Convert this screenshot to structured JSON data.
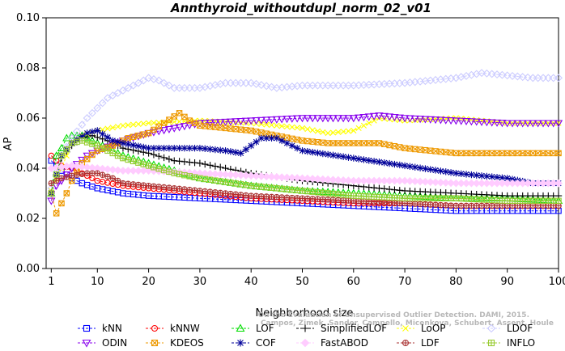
{
  "chart_data": {
    "type": "line",
    "title": "Annthyroid_withoutdupl_norm_02_v01",
    "xlabel": "Neighborhood size",
    "ylabel": "AP",
    "xlim": [
      0,
      100
    ],
    "ylim": [
      0,
      0.1
    ],
    "xticks": [
      1,
      10,
      20,
      30,
      40,
      50,
      60,
      70,
      80,
      90,
      100
    ],
    "yticks": [
      "0.00",
      "0.02",
      "0.04",
      "0.06",
      "0.08",
      "0.10"
    ],
    "watermark": [
      "On the Evaluation of Unsupervised Outlier Detection. DAMI, 2015.",
      "Campos, Zimek, Sander, Campello, Micenkova, Schubert, Assent, Houle"
    ],
    "legend_position": "bottom",
    "series": [
      {
        "name": "kNN",
        "color": "#0000ff",
        "marker": "square",
        "points": [
          [
            1,
            0.043
          ],
          [
            3,
            0.039
          ],
          [
            5,
            0.036
          ],
          [
            7,
            0.034
          ],
          [
            10,
            0.032
          ],
          [
            15,
            0.03
          ],
          [
            20,
            0.029
          ],
          [
            30,
            0.028
          ],
          [
            40,
            0.027
          ],
          [
            50,
            0.026
          ],
          [
            60,
            0.025
          ],
          [
            70,
            0.024
          ],
          [
            80,
            0.023
          ],
          [
            90,
            0.023
          ],
          [
            100,
            0.023
          ]
        ]
      },
      {
        "name": "kNNW",
        "color": "#ff0000",
        "marker": "circle",
        "points": [
          [
            1,
            0.045
          ],
          [
            2,
            0.043
          ],
          [
            3,
            0.041
          ],
          [
            5,
            0.04
          ],
          [
            7,
            0.038
          ],
          [
            10,
            0.035
          ],
          [
            15,
            0.033
          ],
          [
            20,
            0.032
          ],
          [
            30,
            0.03
          ],
          [
            40,
            0.028
          ],
          [
            50,
            0.027
          ],
          [
            60,
            0.026
          ],
          [
            70,
            0.026
          ],
          [
            80,
            0.025
          ],
          [
            90,
            0.025
          ],
          [
            100,
            0.025
          ]
        ]
      },
      {
        "name": "LOF",
        "color": "#00dd00",
        "marker": "triangle",
        "points": [
          [
            1,
            0.03
          ],
          [
            2,
            0.045
          ],
          [
            3,
            0.048
          ],
          [
            4,
            0.052
          ],
          [
            5,
            0.053
          ],
          [
            7,
            0.053
          ],
          [
            10,
            0.05
          ],
          [
            15,
            0.045
          ],
          [
            20,
            0.042
          ],
          [
            25,
            0.039
          ],
          [
            30,
            0.036
          ],
          [
            40,
            0.033
          ],
          [
            50,
            0.031
          ],
          [
            60,
            0.03
          ],
          [
            70,
            0.029
          ],
          [
            80,
            0.028
          ],
          [
            90,
            0.028
          ],
          [
            100,
            0.027
          ]
        ]
      },
      {
        "name": "SimplifiedLOF",
        "color": "#000000",
        "marker": "plus",
        "points": [
          [
            1,
            0.03
          ],
          [
            3,
            0.044
          ],
          [
            5,
            0.049
          ],
          [
            7,
            0.052
          ],
          [
            9,
            0.053
          ],
          [
            12,
            0.051
          ],
          [
            15,
            0.048
          ],
          [
            20,
            0.046
          ],
          [
            25,
            0.043
          ],
          [
            30,
            0.042
          ],
          [
            40,
            0.038
          ],
          [
            50,
            0.035
          ],
          [
            60,
            0.033
          ],
          [
            70,
            0.031
          ],
          [
            80,
            0.03
          ],
          [
            90,
            0.029
          ],
          [
            100,
            0.029
          ]
        ]
      },
      {
        "name": "LoOP",
        "color": "#ffff00",
        "marker": "x",
        "points": [
          [
            1,
            0.031
          ],
          [
            3,
            0.04
          ],
          [
            5,
            0.05
          ],
          [
            7,
            0.053
          ],
          [
            10,
            0.055
          ],
          [
            15,
            0.057
          ],
          [
            20,
            0.058
          ],
          [
            30,
            0.059
          ],
          [
            40,
            0.058
          ],
          [
            50,
            0.056
          ],
          [
            55,
            0.054
          ],
          [
            60,
            0.055
          ],
          [
            65,
            0.06
          ],
          [
            70,
            0.059
          ],
          [
            80,
            0.06
          ],
          [
            90,
            0.058
          ],
          [
            100,
            0.058
          ]
        ]
      },
      {
        "name": "LDOF",
        "color": "#ccccff",
        "marker": "diamond",
        "points": [
          [
            1,
            0.032
          ],
          [
            3,
            0.045
          ],
          [
            5,
            0.052
          ],
          [
            8,
            0.06
          ],
          [
            10,
            0.064
          ],
          [
            12,
            0.068
          ],
          [
            15,
            0.071
          ],
          [
            18,
            0.074
          ],
          [
            20,
            0.076
          ],
          [
            22,
            0.075
          ],
          [
            25,
            0.072
          ],
          [
            30,
            0.072
          ],
          [
            35,
            0.074
          ],
          [
            40,
            0.074
          ],
          [
            45,
            0.072
          ],
          [
            50,
            0.073
          ],
          [
            60,
            0.073
          ],
          [
            70,
            0.074
          ],
          [
            80,
            0.076
          ],
          [
            85,
            0.078
          ],
          [
            90,
            0.077
          ],
          [
            95,
            0.076
          ],
          [
            100,
            0.076
          ]
        ]
      },
      {
        "name": "ODIN",
        "color": "#8800ee",
        "marker": "triangle-down",
        "points": [
          [
            1,
            0.027
          ],
          [
            2,
            0.033
          ],
          [
            3,
            0.035
          ],
          [
            5,
            0.04
          ],
          [
            8,
            0.045
          ],
          [
            10,
            0.047
          ],
          [
            15,
            0.051
          ],
          [
            20,
            0.054
          ],
          [
            25,
            0.056
          ],
          [
            30,
            0.058
          ],
          [
            40,
            0.059
          ],
          [
            50,
            0.06
          ],
          [
            60,
            0.06
          ],
          [
            65,
            0.061
          ],
          [
            70,
            0.06
          ],
          [
            80,
            0.059
          ],
          [
            90,
            0.058
          ],
          [
            100,
            0.058
          ]
        ]
      },
      {
        "name": "KDEOS",
        "color": "#ee9900",
        "marker": "square-x",
        "points": [
          [
            1,
            0.03
          ],
          [
            2,
            0.022
          ],
          [
            3,
            0.026
          ],
          [
            4,
            0.03
          ],
          [
            5,
            0.035
          ],
          [
            7,
            0.042
          ],
          [
            10,
            0.047
          ],
          [
            13,
            0.049
          ],
          [
            16,
            0.052
          ],
          [
            20,
            0.054
          ],
          [
            23,
            0.058
          ],
          [
            26,
            0.062
          ],
          [
            28,
            0.059
          ],
          [
            30,
            0.057
          ],
          [
            35,
            0.056
          ],
          [
            40,
            0.055
          ],
          [
            45,
            0.053
          ],
          [
            50,
            0.051
          ],
          [
            55,
            0.05
          ],
          [
            60,
            0.05
          ],
          [
            65,
            0.05
          ],
          [
            70,
            0.048
          ],
          [
            75,
            0.047
          ],
          [
            80,
            0.046
          ],
          [
            90,
            0.046
          ],
          [
            100,
            0.046
          ]
        ]
      },
      {
        "name": "COF",
        "color": "#000099",
        "marker": "star",
        "points": [
          [
            1,
            0.03
          ],
          [
            3,
            0.045
          ],
          [
            5,
            0.05
          ],
          [
            8,
            0.054
          ],
          [
            10,
            0.055
          ],
          [
            13,
            0.051
          ],
          [
            15,
            0.05
          ],
          [
            20,
            0.048
          ],
          [
            25,
            0.048
          ],
          [
            30,
            0.048
          ],
          [
            35,
            0.047
          ],
          [
            38,
            0.046
          ],
          [
            42,
            0.052
          ],
          [
            45,
            0.052
          ],
          [
            50,
            0.047
          ],
          [
            60,
            0.044
          ],
          [
            70,
            0.041
          ],
          [
            80,
            0.038
          ],
          [
            90,
            0.036
          ],
          [
            95,
            0.034
          ],
          [
            100,
            0.034
          ]
        ]
      },
      {
        "name": "FastABOD",
        "color": "#ffccff",
        "marker": "diamond-filled",
        "points": [
          [
            1,
            0.04
          ],
          [
            5,
            0.041
          ],
          [
            10,
            0.04
          ],
          [
            15,
            0.039
          ],
          [
            20,
            0.039
          ],
          [
            30,
            0.038
          ],
          [
            40,
            0.037
          ],
          [
            50,
            0.036
          ],
          [
            60,
            0.035
          ],
          [
            70,
            0.035
          ],
          [
            80,
            0.034
          ],
          [
            90,
            0.034
          ],
          [
            100,
            0.034
          ]
        ]
      },
      {
        "name": "LDF",
        "color": "#aa3333",
        "marker": "circle-plus",
        "points": [
          [
            1,
            0.034
          ],
          [
            3,
            0.036
          ],
          [
            5,
            0.037
          ],
          [
            8,
            0.038
          ],
          [
            10,
            0.038
          ],
          [
            13,
            0.036
          ],
          [
            15,
            0.034
          ],
          [
            20,
            0.033
          ],
          [
            25,
            0.032
          ],
          [
            30,
            0.031
          ],
          [
            40,
            0.029
          ],
          [
            50,
            0.028
          ],
          [
            60,
            0.027
          ],
          [
            70,
            0.026
          ],
          [
            80,
            0.025
          ],
          [
            90,
            0.025
          ],
          [
            100,
            0.025
          ]
        ]
      },
      {
        "name": "INFLO",
        "color": "#99cc33",
        "marker": "square-cross",
        "points": [
          [
            1,
            0.03
          ],
          [
            3,
            0.045
          ],
          [
            5,
            0.05
          ],
          [
            7,
            0.051
          ],
          [
            10,
            0.049
          ],
          [
            15,
            0.044
          ],
          [
            20,
            0.041
          ],
          [
            25,
            0.038
          ],
          [
            30,
            0.036
          ],
          [
            40,
            0.033
          ],
          [
            50,
            0.031
          ],
          [
            60,
            0.029
          ],
          [
            70,
            0.028
          ],
          [
            80,
            0.028
          ],
          [
            90,
            0.027
          ],
          [
            100,
            0.027
          ]
        ]
      }
    ]
  }
}
